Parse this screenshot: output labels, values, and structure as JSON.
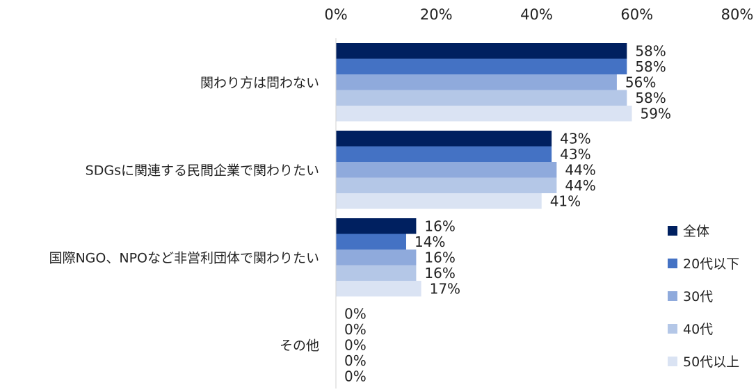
{
  "chart_data": {
    "type": "bar",
    "orientation": "horizontal",
    "categories": [
      "関わり方は問わない",
      "SDGsに関連する民間企業で関わりたい",
      "国際NGO、NPOなど非営利団体で関わりたい",
      "その他"
    ],
    "series": [
      {
        "name": "全体",
        "color": "#002060",
        "values": [
          58,
          43,
          16,
          0
        ]
      },
      {
        "name": "20代以下",
        "color": "#4472C4",
        "values": [
          58,
          43,
          14,
          0
        ]
      },
      {
        "name": "30代",
        "color": "#8FAADC",
        "values": [
          56,
          44,
          16,
          0
        ]
      },
      {
        "name": "40代",
        "color": "#B4C7E7",
        "values": [
          58,
          44,
          16,
          0
        ]
      },
      {
        "name": "50代以上",
        "color": "#DAE3F3",
        "values": [
          59,
          41,
          17,
          0
        ]
      }
    ],
    "xlim": [
      0,
      80
    ],
    "xticks": [
      0,
      20,
      40,
      60,
      80
    ],
    "tick_suffix": "%",
    "value_suffix": "%",
    "axis_position": "top",
    "grid": false,
    "legend_position": "right"
  }
}
